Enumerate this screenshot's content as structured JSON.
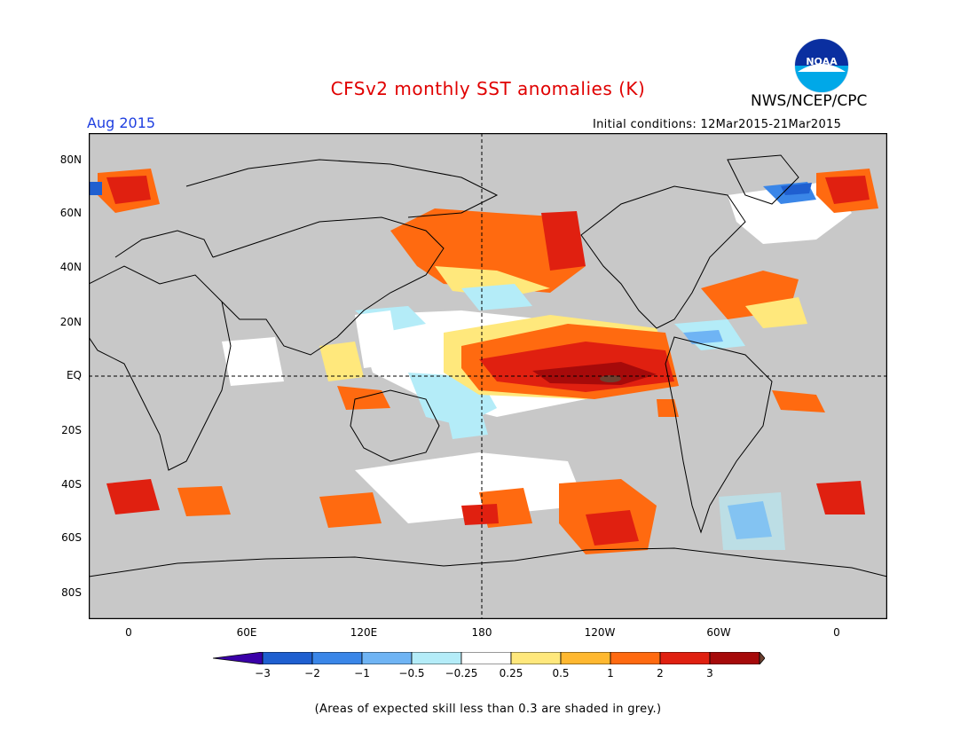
{
  "title": "CFSv2 monthly SST anomalies (K)",
  "org": "NWS/NCEP/CPC",
  "logo_text": "NOAA",
  "valid_month": "Aug 2015",
  "initial_conditions": "Initial conditions: 12Mar2015-21Mar2015",
  "lat_labels": [
    "80N",
    "60N",
    "40N",
    "20N",
    "EQ",
    "20S",
    "40S",
    "60S",
    "80S"
  ],
  "lon_labels": [
    "0",
    "60E",
    "120E",
    "180",
    "120W",
    "60W",
    "0"
  ],
  "colorbar": {
    "colors": [
      "#3a00a8",
      "#1f5fd0",
      "#3a86e8",
      "#6fb4f4",
      "#b4ecf8",
      "#ffffff",
      "#ffe87c",
      "#ffb830",
      "#ff6a10",
      "#e02010",
      "#a60a0a",
      "#6e4030"
    ],
    "labels": [
      "−3",
      "−2",
      "−1",
      "−0.5",
      "−0.25",
      "0.25",
      "0.5",
      "1",
      "2",
      "3"
    ]
  },
  "land_color": "#c8c8c8",
  "footnote": "(Areas of expected skill less than 0.3 are shaded in grey.)"
}
